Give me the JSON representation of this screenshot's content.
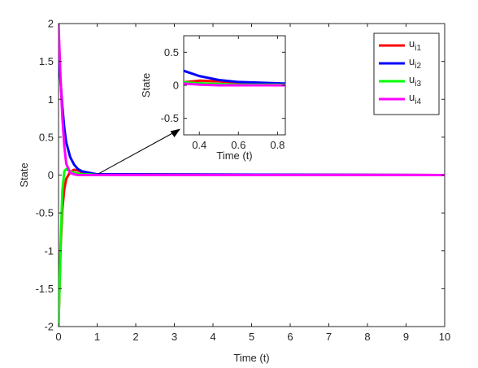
{
  "chart_data": [
    {
      "type": "line",
      "xlabel": "Time (t)",
      "ylabel": "State",
      "xlim": [
        0,
        10
      ],
      "ylim": [
        -2,
        2
      ],
      "xticks": [
        0,
        1,
        2,
        3,
        4,
        5,
        6,
        7,
        8,
        9,
        10
      ],
      "yticks": [
        -2,
        -1.5,
        -1,
        -0.5,
        0,
        0.5,
        1,
        1.5,
        2
      ],
      "grid": false,
      "legend_position": "top-right",
      "series": [
        {
          "name": "u",
          "subscript": "i1",
          "color": "#ff0000",
          "x": [
            0,
            0.05,
            0.1,
            0.15,
            0.2,
            0.3,
            0.4,
            0.5,
            0.6,
            0.8,
            1.0,
            10
          ],
          "y": [
            -2,
            -1.0,
            -0.45,
            -0.18,
            -0.05,
            0.04,
            0.07,
            0.06,
            0.04,
            0.02,
            0.01,
            0
          ]
        },
        {
          "name": "u",
          "subscript": "i2",
          "color": "#0000ff",
          "x": [
            0,
            0.05,
            0.1,
            0.15,
            0.2,
            0.3,
            0.4,
            0.5,
            0.6,
            0.8,
            1.0,
            10
          ],
          "y": [
            1.6,
            1.25,
            0.9,
            0.62,
            0.43,
            0.24,
            0.14,
            0.08,
            0.05,
            0.03,
            0.01,
            0
          ]
        },
        {
          "name": "u",
          "subscript": "i3",
          "color": "#00ff00",
          "x": [
            0,
            0.05,
            0.1,
            0.15,
            0.2,
            0.3,
            0.4,
            0.5,
            0.6,
            0.8,
            1.0,
            10
          ],
          "y": [
            -2,
            -1.0,
            -0.2,
            0.05,
            0.08,
            0.05,
            0.03,
            0.02,
            0.01,
            0.01,
            0,
            0
          ]
        },
        {
          "name": "u",
          "subscript": "i4",
          "color": "#ff00ff",
          "x": [
            0,
            0.05,
            0.1,
            0.15,
            0.2,
            0.3,
            0.4,
            0.5,
            0.6,
            0.8,
            1.0,
            10
          ],
          "y": [
            2,
            1.3,
            0.75,
            0.38,
            0.15,
            0.03,
            0.01,
            0.0,
            0.0,
            0.0,
            0,
            0
          ]
        }
      ]
    },
    {
      "type": "line",
      "inset": true,
      "xlabel": "Time (t)",
      "ylabel": "State",
      "xlim": [
        0.32,
        0.84
      ],
      "ylim": [
        -0.75,
        0.75
      ],
      "xticks": [
        0.4,
        0.6,
        0.8
      ],
      "yticks": [
        -0.5,
        0,
        0.5
      ],
      "grid": false
    }
  ]
}
